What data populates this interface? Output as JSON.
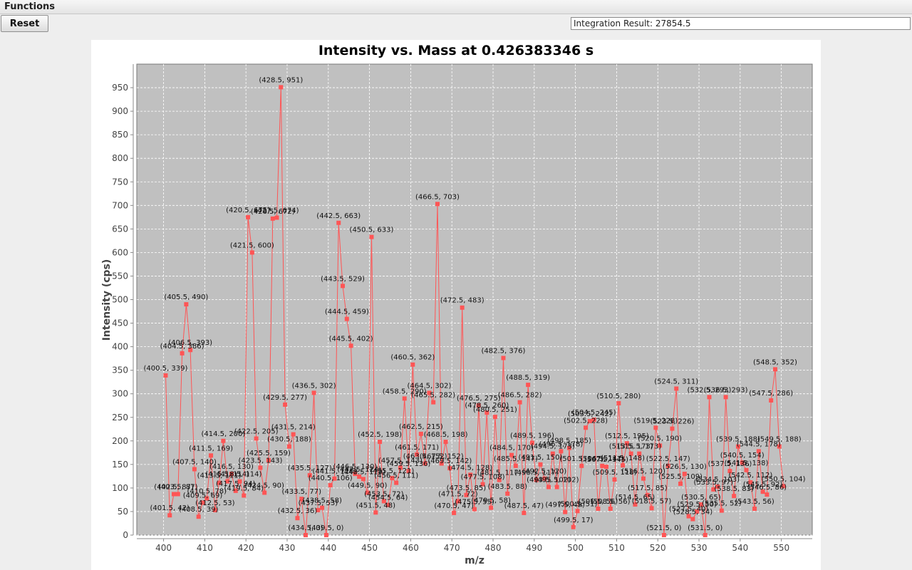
{
  "menubar": {
    "functions_label": "Functions"
  },
  "toolbar": {
    "reset_label": "Reset"
  },
  "integration": {
    "result_text": "Integration Result: 27854.5"
  },
  "colors": {
    "series": "#ff5555",
    "plot_background": "#c0c0c0",
    "gridline": "#ffffff"
  },
  "chart_data": {
    "type": "line",
    "title": "Intensity vs. Mass at 0.426383346 s",
    "xlabel": "m/z",
    "ylabel": "Intensity (cps)",
    "xlim": [
      393.5,
      557.5
    ],
    "ylim": [
      0,
      1000
    ],
    "xticks": [
      400,
      410,
      420,
      430,
      440,
      450,
      460,
      470,
      480,
      490,
      500,
      510,
      520,
      530,
      540,
      550
    ],
    "yticks": [
      0,
      50,
      100,
      150,
      200,
      250,
      300,
      350,
      400,
      450,
      500,
      550,
      600,
      650,
      700,
      750,
      800,
      850,
      900,
      950
    ],
    "grid": true,
    "markers": "square",
    "point_labels": true,
    "series": [
      {
        "x": [
          400.5,
          401.5,
          402.5,
          403.5,
          404.5,
          405.5,
          406.5,
          407.5,
          408.5,
          409.5,
          410.5,
          411.5,
          412.5,
          413.5,
          414.5,
          415.5,
          416.5,
          417.5,
          418.5,
          419.5,
          420.5,
          421.5,
          422.5,
          423.5,
          424.5,
          425.5,
          426.5,
          427.5,
          428.5,
          429.5,
          430.5,
          431.5,
          432.5,
          433.5,
          434.5,
          435.5,
          436.5,
          437.5,
          438.5,
          439.5,
          440.5,
          441.5,
          442.5,
          443.5,
          444.5,
          445.5,
          446.5,
          447.5,
          448.5,
          449.5,
          450.5,
          451.5,
          452.5,
          453.5,
          454.5,
          455.5,
          456.5,
          457.5,
          458.5,
          459.5,
          460.5,
          461.5,
          462.5,
          463.5,
          464.5,
          465.5,
          466.5,
          467.5,
          468.5,
          469.5,
          470.5,
          471.5,
          472.5,
          473.5,
          474.5,
          475.5,
          476.5,
          477.5,
          478.5,
          479.5,
          480.5,
          481.5,
          482.5,
          483.5,
          484.5,
          485.5,
          486.5,
          487.5,
          488.5,
          489.5,
          490.5,
          491.5,
          492.5,
          493.5,
          494.5,
          495.5,
          496.5,
          497.5,
          498.5,
          499.5,
          500.5,
          501.5,
          502.5,
          503.5,
          504.5,
          505.5,
          506.5,
          507.5,
          508.5,
          509.5,
          510.5,
          511.5,
          512.5,
          513.5,
          514.5,
          515.5,
          516.5,
          517.5,
          518.5,
          519.5,
          520.5,
          521.5,
          522.5,
          523.5,
          524.5,
          525.5,
          526.5,
          527.5,
          528.5,
          529.5,
          530.5,
          531.5,
          532.5,
          533.5,
          534.5,
          535.5,
          536.5,
          537.5,
          538.5,
          539.5,
          540.5,
          541.5,
          542.5,
          543.5,
          544.5,
          545.5,
          546.5,
          547.5,
          548.5,
          549.5,
          550.5
        ],
        "y": [
          339,
          42,
          87,
          87,
          386,
          490,
          393,
          140,
          39,
          69,
          78,
          169,
          53,
          111,
          200,
          114,
          130,
          94,
          114,
          84,
          675,
          600,
          205,
          143,
          90,
          159,
          672,
          674,
          951,
          277,
          188,
          214,
          36,
          77,
          0,
          127,
          302,
          53,
          58,
          0,
          106,
          120,
          663,
          529,
          459,
          402,
          130,
          124,
          119,
          90,
          633,
          48,
          198,
          72,
          64,
          121,
          111,
          143,
          290,
          136,
          362,
          171,
          215,
          152,
          302,
          282,
          703,
          152,
          198,
          142,
          47,
          72,
          483,
          85,
          128,
          55,
          275,
          108,
          260,
          58,
          251,
          117,
          376,
          88,
          170,
          147,
          282,
          47,
          319,
          196,
          117,
          150,
          120,
          102,
          173,
          102,
          178,
          49,
          185,
          17,
          51,
          147,
          228,
          242,
          245,
          56,
          147,
          145,
          56,
          118,
          280,
          148,
          195,
          173,
          65,
          173,
          120,
          85,
          57,
          228,
          190,
          0,
          147,
          226,
          311,
          109,
          130,
          40,
          34,
          50,
          65,
          0,
          293,
          97,
          103,
          52,
          293,
          136,
          83,
          188,
          154,
          138,
          112,
          56,
          178,
          92,
          86,
          286,
          352,
          188,
          104
        ],
        "labels": [
          "(400.5, 339)",
          "(401.5, 42)",
          "(402.5, 87)",
          "(403.5, 87)",
          "(404.5, 386)",
          "(405.5, 490)",
          "(406.5, 393)",
          "(407.5, 140)",
          "(408.5, 39)",
          "(409.5, 69)",
          "(410.5, 78)",
          "(411.5, 169)",
          "(412.5, 53)",
          "(413.5, 111)",
          "(414.5, 200)",
          "(415.5, 114)",
          "(416.5, 130)",
          "(417.5, 94)",
          "(418.5, 114)",
          "(419.5, 84)",
          "(420.5, 675)",
          "(421.5, 600)",
          "(422.5, 205)",
          "(423.5, 143)",
          "(424.5, 90)",
          "(425.5, 159)",
          "(426.5, 672)",
          "(427.5, 674)",
          "(428.5, 951)",
          "(429.5, 277)",
          "(430.5, 188)",
          "(431.5, 214)",
          "(432.5, 36)",
          "(433.5, 77)",
          "(434.5, 0)",
          "(435.5, 127)",
          "(436.5, 302)",
          "(437.5, 53)",
          "(438.5, 58)",
          "(439.5, 0)",
          "(440.5, 106)",
          "(441.5, 120)",
          "(442.5, 663)",
          "(443.5, 529)",
          "(444.5, 459)",
          "(445.5, 402)",
          "(446.5, 130)",
          "(447.5, 124)",
          "(448.5, 119)",
          "(449.5, 90)",
          "(450.5, 633)",
          "(451.5, 48)",
          "(452.5, 198)",
          "(453.5, 72)",
          "(454.5, 64)",
          "(455.5, 121)",
          "(456.5, 111)",
          "(457.5, 143)",
          "(458.5, 290)",
          "(459.5, 136)",
          "(460.5, 362)",
          "(461.5, 171)",
          "(462.5, 215)",
          "(463.5, 152)",
          "(464.5, 302)",
          "(465.5, 282)",
          "(466.5, 703)",
          "(467.5, 152)",
          "(468.5, 198)",
          "(469.5, 142)",
          "(470.5, 47)",
          "(471.5, 72)",
          "(472.5, 483)",
          "(473.5, 85)",
          "(474.5, 128)",
          "(475.5, 55)",
          "(476.5, 275)",
          "(477.5, 108)",
          "(478.5, 260)",
          "(479.5, 58)",
          "(480.5, 251)",
          "(481.5, 117)",
          "(482.5, 376)",
          "(483.5, 88)",
          "(484.5, 170)",
          "(485.5, 147)",
          "(486.5, 282)",
          "(487.5, 47)",
          "(488.5, 319)",
          "(489.5, 196)",
          "(490.5, 117)",
          "(491.5, 150)",
          "(492.5, 120)",
          "(493.5, 102)",
          "(494.5, 173)",
          "(495.5, 102)",
          "(496.5, 178)",
          "(497.5, 49)",
          "(498.5, 185)",
          "(499.5, 17)",
          "(500.5, 51)",
          "(501.5, 147)",
          "(502.5, 228)",
          "(503.5, 242)",
          "(504.5, 245)",
          "(505.5, 56)",
          "(506.5, 147)",
          "(507.5, 145)",
          "(508.5, 56)",
          "(509.5, 118)",
          "(510.5, 280)",
          "(511.5, 148)",
          "(512.5, 195)",
          "(513.5, 173)",
          "(514.5, 65)",
          "(515.5, 173)",
          "(516.5, 120)",
          "(517.5, 85)",
          "(518.5, 57)",
          "(519.5, 228)",
          "(520.5, 190)",
          "(521.5, 0)",
          "(522.5, 147)",
          "(523.5, 226)",
          "(524.5, 311)",
          "(525.5, 109)",
          "(526.5, 130)",
          "(527.5, 40)",
          "(528.5, 34)",
          "(529.5, 50)",
          "(530.5, 65)",
          "(531.5, 0)",
          "(532.5, 293)",
          "(533.5, 97)",
          "(534.5, 103)",
          "(535.5, 52)",
          "(536.5, 293)",
          "(537.5, 136)",
          "(538.5, 83)",
          "(539.5, 188)",
          "(540.5, 154)",
          "(541.5, 138)",
          "(542.5, 112)",
          "(543.5, 56)",
          "(544.5, 178)",
          "(545.5, 92)",
          "(546.5, 86)",
          "(547.5, 286)",
          "(548.5, 352)",
          "(549.5, 188)",
          "(550.5, 104)"
        ]
      }
    ]
  }
}
